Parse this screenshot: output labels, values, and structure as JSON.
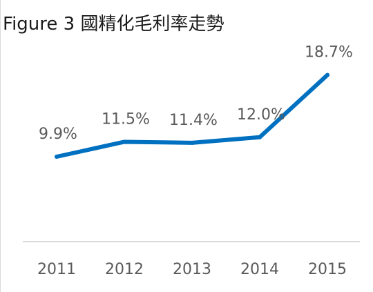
{
  "title": "Figure 3  國精化毛利率走勢",
  "colors": {
    "line": "#0070C0",
    "axis": "#d9d9d9",
    "text": "#595959"
  },
  "chart_data": {
    "type": "line",
    "title": "Figure 3  國精化毛利率走勢",
    "xlabel": "",
    "ylabel": "",
    "categories": [
      "2011",
      "2012",
      "2013",
      "2014",
      "2015"
    ],
    "series": [
      {
        "values": [
          9.9,
          11.5,
          11.4,
          12.0,
          18.7
        ],
        "labels": [
          "9.9%",
          "11.5%",
          "11.4%",
          "12.0%",
          "18.7%"
        ]
      }
    ],
    "grid": false,
    "legend": "none"
  }
}
